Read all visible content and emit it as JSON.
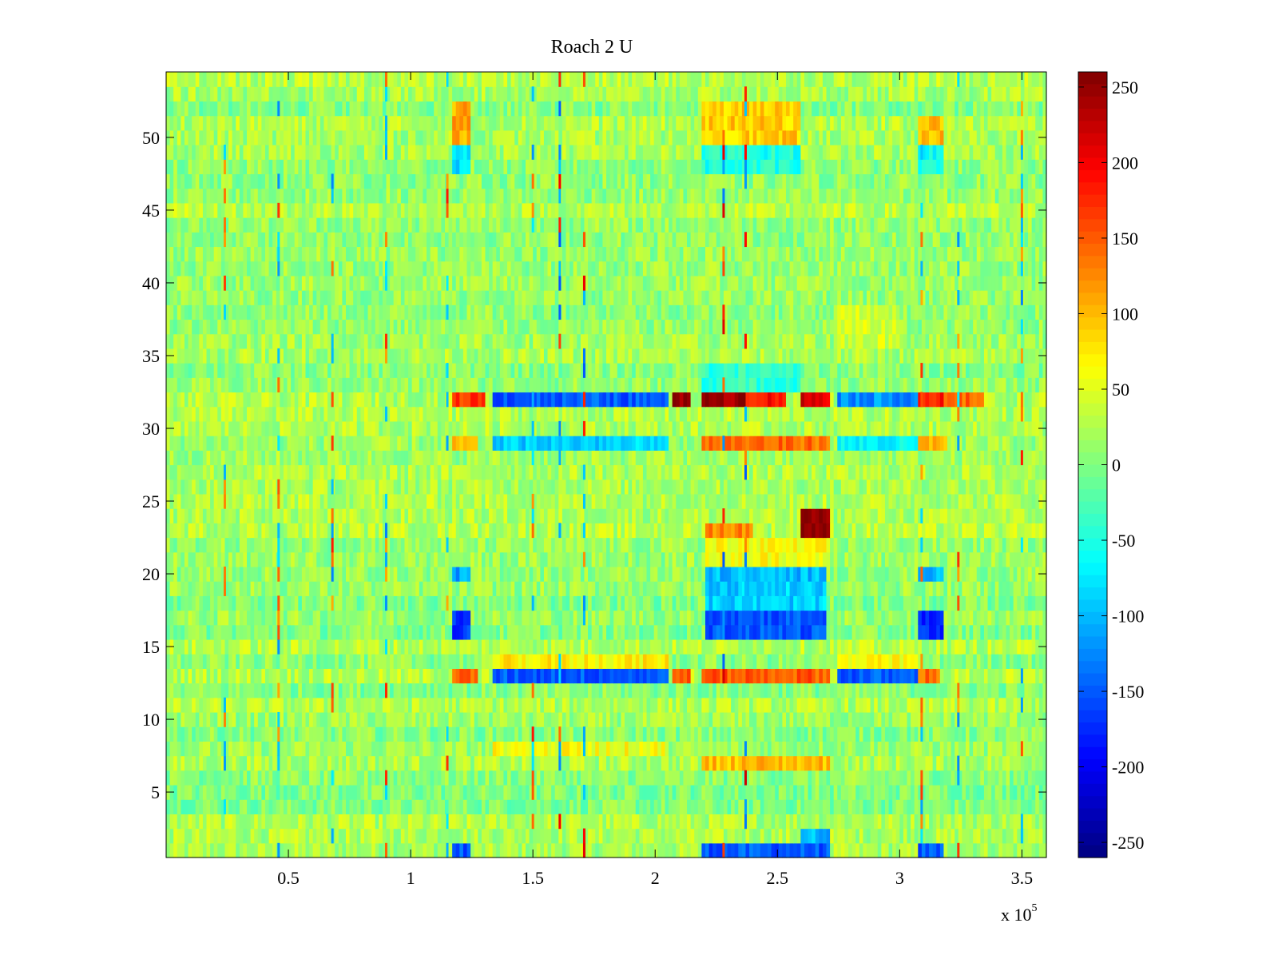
{
  "chart_data": {
    "type": "heatmap",
    "title": "Roach 2 U",
    "xlabel": "",
    "ylabel": "",
    "x_multiplier_label": "x 10",
    "x_multiplier_exponent": "5",
    "xlim": [
      0,
      3.6
    ],
    "ylim": [
      0.5,
      54.5
    ],
    "x_ticks": [
      0.5,
      1,
      1.5,
      2,
      2.5,
      3,
      3.5
    ],
    "x_tick_labels": [
      "0.5",
      "1",
      "1.5",
      "2",
      "2.5",
      "3",
      "3.5"
    ],
    "y_ticks": [
      5,
      10,
      15,
      20,
      25,
      30,
      35,
      40,
      45,
      50
    ],
    "y_tick_labels": [
      "5",
      "10",
      "15",
      "20",
      "25",
      "30",
      "35",
      "40",
      "45",
      "50"
    ],
    "rows": 54,
    "colormap": "jet",
    "clim": [
      -260,
      260
    ],
    "colorbar_ticks": [
      250,
      200,
      150,
      100,
      50,
      0,
      -50,
      -100,
      -150,
      -200,
      -250
    ],
    "colorbar_tick_labels": [
      "250",
      "200",
      "150",
      "100",
      "50",
      "0",
      "-50",
      "-100",
      "-150",
      "-200",
      "-250"
    ],
    "baseline_value": 15,
    "noise_amplitude": 30,
    "blocks": [
      {
        "rows": [
          32,
          32
        ],
        "x": [
          1.17,
          1.3
        ],
        "value": 170
      },
      {
        "rows": [
          32,
          32
        ],
        "x": [
          1.33,
          2.05
        ],
        "value": -150
      },
      {
        "rows": [
          32,
          32
        ],
        "x": [
          2.07,
          2.14
        ],
        "value": 255
      },
      {
        "rows": [
          32,
          32
        ],
        "x": [
          2.19,
          2.37
        ],
        "value": 250
      },
      {
        "rows": [
          32,
          32
        ],
        "x": [
          2.37,
          2.53
        ],
        "value": 190
      },
      {
        "rows": [
          32,
          32
        ],
        "x": [
          2.6,
          2.72
        ],
        "value": 215
      },
      {
        "rows": [
          32,
          32
        ],
        "x": [
          2.75,
          3.08
        ],
        "value": -120
      },
      {
        "rows": [
          32,
          32
        ],
        "x": [
          3.08,
          3.18
        ],
        "value": 180
      },
      {
        "rows": [
          32,
          32
        ],
        "x": [
          3.18,
          3.35
        ],
        "value": 140
      },
      {
        "rows": [
          29,
          29
        ],
        "x": [
          1.17,
          1.28
        ],
        "value": 90
      },
      {
        "rows": [
          29,
          29
        ],
        "x": [
          1.33,
          2.06
        ],
        "value": -90
      },
      {
        "rows": [
          29,
          29
        ],
        "x": [
          2.19,
          2.72
        ],
        "value": 140
      },
      {
        "rows": [
          29,
          29
        ],
        "x": [
          2.75,
          3.08
        ],
        "value": -70
      },
      {
        "rows": [
          29,
          29
        ],
        "x": [
          3.08,
          3.2
        ],
        "value": 100
      },
      {
        "rows": [
          13,
          13
        ],
        "x": [
          1.17,
          1.27
        ],
        "value": 140
      },
      {
        "rows": [
          13,
          13
        ],
        "x": [
          1.33,
          2.06
        ],
        "value": -150
      },
      {
        "rows": [
          13,
          13
        ],
        "x": [
          2.07,
          2.14
        ],
        "value": 150
      },
      {
        "rows": [
          13,
          13
        ],
        "x": [
          2.19,
          2.72
        ],
        "value": 150
      },
      {
        "rows": [
          13,
          13
        ],
        "x": [
          2.74,
          3.08
        ],
        "value": -150
      },
      {
        "rows": [
          13,
          13
        ],
        "x": [
          3.08,
          3.17
        ],
        "value": 140
      },
      {
        "rows": [
          14,
          14
        ],
        "x": [
          1.33,
          2.06
        ],
        "value": 70
      },
      {
        "rows": [
          14,
          14
        ],
        "x": [
          2.74,
          3.08
        ],
        "value": 60
      },
      {
        "rows": [
          23,
          24
        ],
        "x": [
          2.6,
          2.72
        ],
        "value": 260
      },
      {
        "rows": [
          23,
          23
        ],
        "x": [
          2.2,
          2.4
        ],
        "value": 130
      },
      {
        "rows": [
          21,
          22
        ],
        "x": [
          2.2,
          2.72
        ],
        "value": 60
      },
      {
        "rows": [
          16,
          17
        ],
        "x": [
          1.17,
          1.25
        ],
        "value": -170
      },
      {
        "rows": [
          16,
          17
        ],
        "x": [
          2.2,
          2.7
        ],
        "value": -150
      },
      {
        "rows": [
          16,
          17
        ],
        "x": [
          3.08,
          3.18
        ],
        "value": -170
      },
      {
        "rows": [
          18,
          19
        ],
        "x": [
          2.2,
          2.7
        ],
        "value": -90
      },
      {
        "rows": [
          20,
          20
        ],
        "x": [
          1.17,
          1.25
        ],
        "value": -110
      },
      {
        "rows": [
          20,
          20
        ],
        "x": [
          2.2,
          2.7
        ],
        "value": -100
      },
      {
        "rows": [
          20,
          20
        ],
        "x": [
          3.08,
          3.18
        ],
        "value": -100
      },
      {
        "rows": [
          50,
          52
        ],
        "x": [
          1.17,
          1.25
        ],
        "value": 110
      },
      {
        "rows": [
          50,
          52
        ],
        "x": [
          2.19,
          2.6
        ],
        "value": 90
      },
      {
        "rows": [
          50,
          51
        ],
        "x": [
          3.08,
          3.18
        ],
        "value": 100
      },
      {
        "rows": [
          48,
          49
        ],
        "x": [
          1.17,
          1.25
        ],
        "value": -80
      },
      {
        "rows": [
          48,
          49
        ],
        "x": [
          2.19,
          2.6
        ],
        "value": -50
      },
      {
        "rows": [
          48,
          49
        ],
        "x": [
          3.08,
          3.18
        ],
        "value": -60
      },
      {
        "rows": [
          1,
          1
        ],
        "x": [
          1.17,
          1.25
        ],
        "value": -150
      },
      {
        "rows": [
          1,
          1
        ],
        "x": [
          2.19,
          2.72
        ],
        "value": -150
      },
      {
        "rows": [
          1,
          1
        ],
        "x": [
          3.08,
          3.18
        ],
        "value": -150
      },
      {
        "rows": [
          2,
          2
        ],
        "x": [
          2.6,
          2.72
        ],
        "value": -100
      },
      {
        "rows": [
          7,
          7
        ],
        "x": [
          2.19,
          2.72
        ],
        "value": 100
      },
      {
        "rows": [
          8,
          8
        ],
        "x": [
          1.33,
          2.06
        ],
        "value": 60
      },
      {
        "rows": [
          33,
          34
        ],
        "x": [
          2.19,
          2.6
        ],
        "value": -40
      },
      {
        "rows": [
          36,
          38
        ],
        "x": [
          2.75,
          3.0
        ],
        "value": 40
      }
    ],
    "vertical_stripes": [
      {
        "x": 0.24,
        "value": 170
      },
      {
        "x": 0.46,
        "value": 170
      },
      {
        "x": 0.68,
        "value": 170
      },
      {
        "x": 0.9,
        "value": 170
      },
      {
        "x": 1.15,
        "value": 170
      },
      {
        "x": 1.5,
        "value": 170
      },
      {
        "x": 1.61,
        "value": 200
      },
      {
        "x": 1.71,
        "value": 200
      },
      {
        "x": 2.28,
        "value": 200
      },
      {
        "x": 2.37,
        "value": 200
      },
      {
        "x": 3.09,
        "value": 170
      },
      {
        "x": 3.24,
        "value": 170
      },
      {
        "x": 3.5,
        "value": 170
      }
    ]
  }
}
